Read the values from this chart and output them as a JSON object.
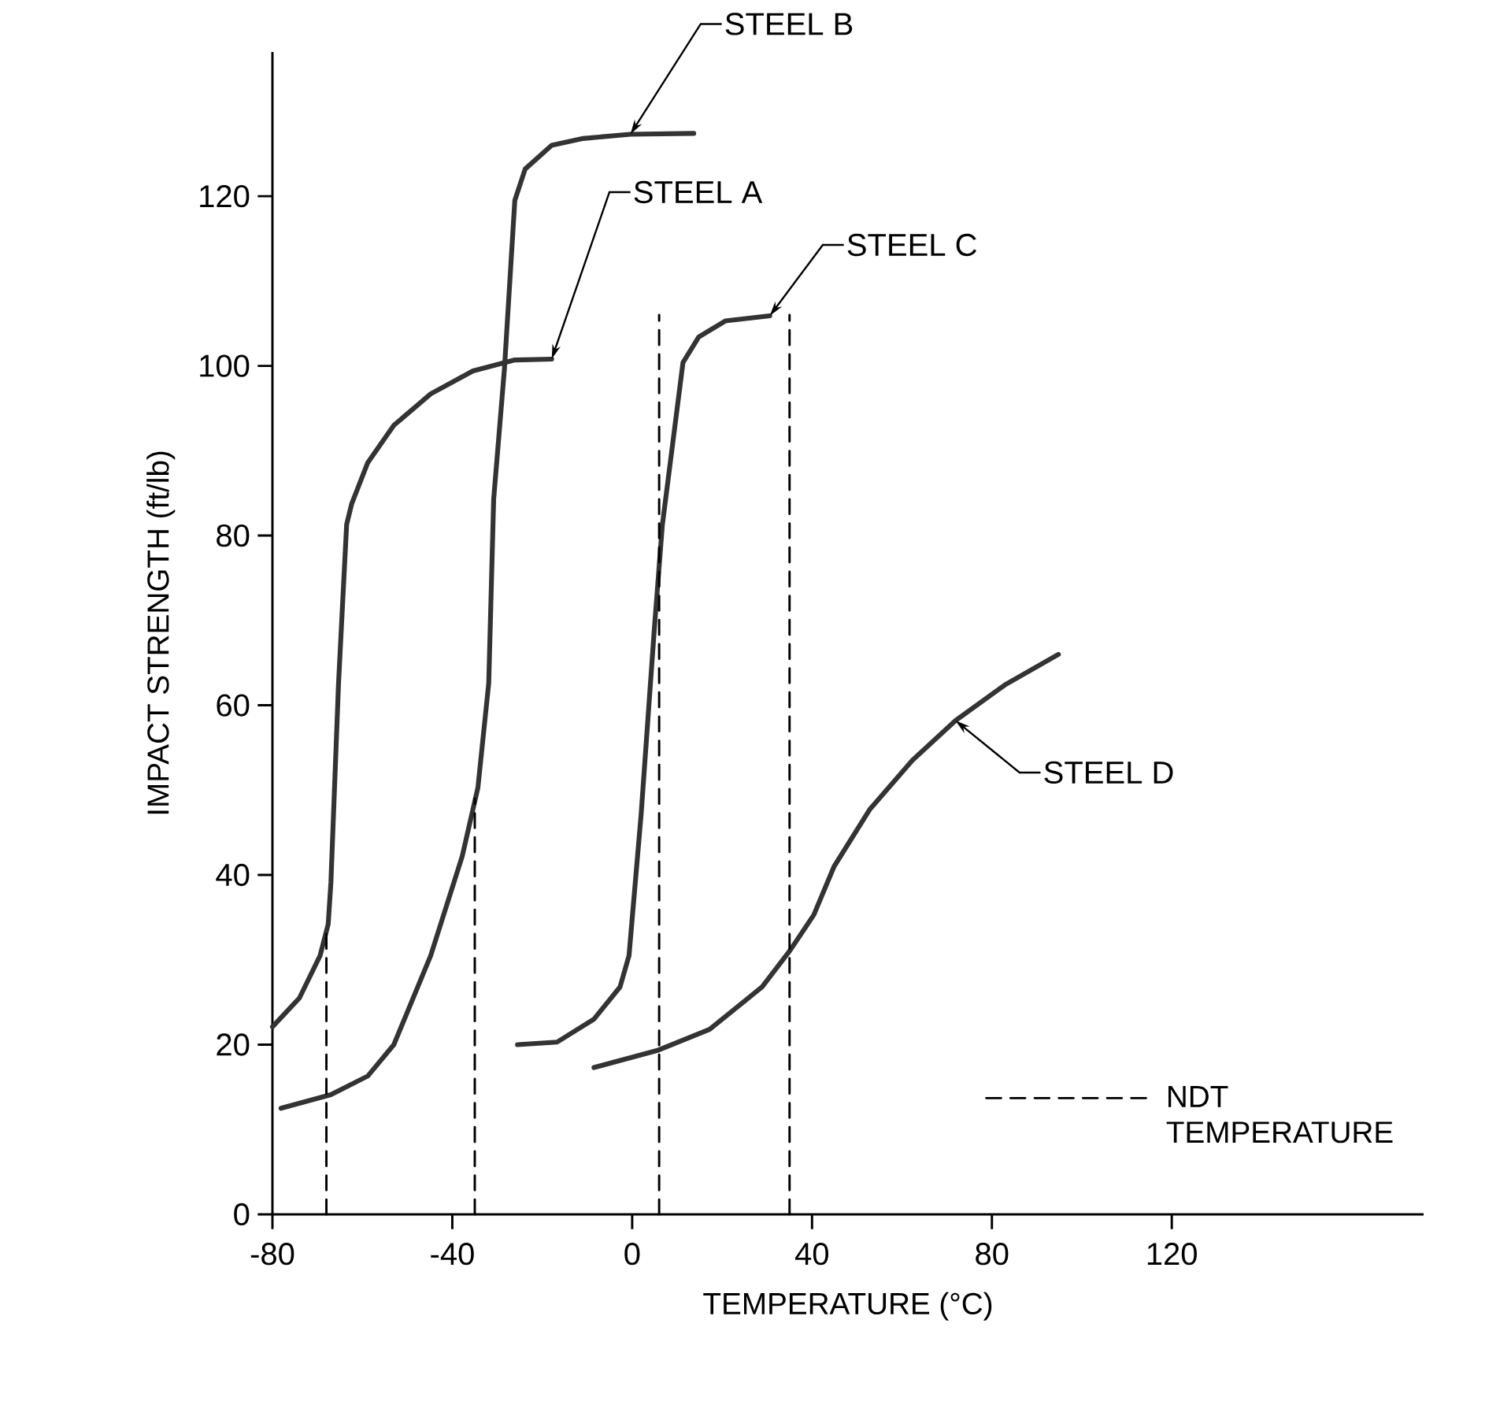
{
  "chart_data": {
    "type": "line",
    "xlabel": "TEMPERATURE (°C)",
    "ylabel": "IMPACT STRENGTH (ft/lb)",
    "xlim": [
      -80,
      176
    ],
    "ylim": [
      0,
      137
    ],
    "xticks": [
      -80,
      -40,
      0,
      40,
      80,
      120
    ],
    "yticks": [
      0,
      20,
      40,
      60,
      80,
      100,
      120
    ],
    "grid": false,
    "legend": "bottom right",
    "marker": "none",
    "annotations": [
      {
        "text": "STEEL A",
        "x": -17.9,
        "y": 100.8
      },
      {
        "text": "STEEL B",
        "x": -0.4,
        "y": 127.3
      },
      {
        "text": "STEEL C",
        "x": 30.6,
        "y": 105.9
      },
      {
        "text": "STEEL D",
        "x": 71.9,
        "y": 58.2
      }
    ],
    "series": [
      {
        "color": "#333333",
        "line_style": "solid",
        "x": [
          -80,
          -74,
          -69.4,
          -67.6,
          -67,
          -65.3,
          -63.5,
          -62.4,
          -58.8,
          -53,
          -44.8,
          -35.4,
          -26.1,
          -17.9
        ],
        "values": [
          22.1,
          25.5,
          30.5,
          34.2,
          39.1,
          62.6,
          81.3,
          83.7,
          88.6,
          93,
          96.7,
          99.4,
          100.7,
          100.8
        ]
      },
      {
        "color": "#333333",
        "line_style": "solid",
        "x": [
          -78.1,
          -67,
          -58.8,
          -53,
          -44.8,
          -37.8,
          -34.3,
          -31.9,
          -30.8,
          -28.4,
          -26.1,
          -23.8,
          -17.9,
          -10.9,
          -0.4,
          13.7
        ],
        "values": [
          12.5,
          14.1,
          16.3,
          20,
          30.5,
          42.2,
          50.3,
          62.6,
          84.3,
          99.7,
          119.5,
          123.2,
          126,
          126.8,
          127.3,
          127.4
        ]
      },
      {
        "color": "#333333",
        "line_style": "solid",
        "x": [
          -25.5,
          -16.7,
          -8.5,
          -2.7,
          -0.7,
          2,
          4.9,
          6.7,
          11.3,
          14.8,
          20.7,
          30.6
        ],
        "values": [
          20,
          20.3,
          23,
          26.8,
          30.5,
          47.2,
          68.8,
          81.2,
          100.4,
          103.4,
          105.3,
          105.9
        ]
      },
      {
        "color": "#333333",
        "line_style": "solid",
        "x": [
          -8.5,
          5.5,
          17.2,
          28.9,
          35.1,
          40.4,
          44.9,
          52.8,
          62.3,
          71.9,
          82.9,
          94.8
        ],
        "values": [
          17.3,
          19.3,
          21.8,
          26.8,
          31.1,
          35.3,
          41,
          47.7,
          53.5,
          58.2,
          62.4,
          66
        ]
      },
      {
        "name": "NDT TEMPERATURE",
        "color": "#000000",
        "line_style": "dashed",
        "x": [
          -68,
          -68,
          null,
          -35,
          -35,
          null,
          6,
          6,
          null,
          35,
          35
        ],
        "values": [
          0,
          34,
          null,
          0,
          49,
          null,
          0,
          106,
          null,
          0,
          106
        ]
      }
    ]
  }
}
